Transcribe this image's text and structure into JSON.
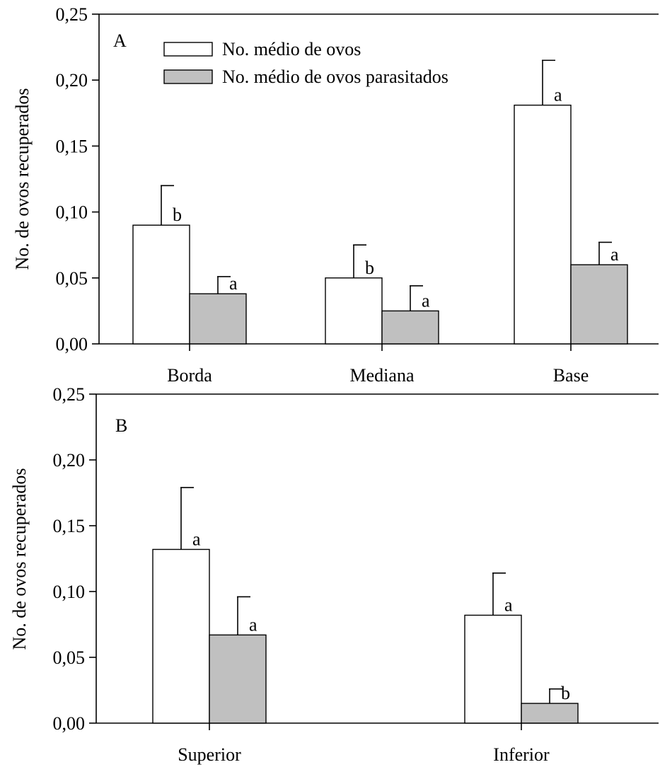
{
  "legend": {
    "entries": [
      {
        "label": "No. médio de ovos",
        "color": "#ffffff"
      },
      {
        "label": "No. médio de ovos parasitados",
        "color": "#c0c0c0"
      }
    ]
  },
  "chart_data": [
    {
      "type": "bar",
      "panel": "A",
      "ylabel": "No. de ovos recuperados",
      "ylim": [
        0,
        0.25
      ],
      "yticks": [
        "0,00",
        "0,05",
        "0,10",
        "0,15",
        "0,20",
        "0,25"
      ],
      "categories": [
        "Borda",
        "Mediana",
        "Base"
      ],
      "series": [
        {
          "name": "No. médio de ovos",
          "color": "#ffffff",
          "values": [
            0.09,
            0.05,
            0.181
          ],
          "errors": [
            0.03,
            0.025,
            0.034
          ],
          "sig_labels": [
            "b",
            "b",
            "a"
          ]
        },
        {
          "name": "No. médio de ovos parasitados",
          "color": "#c0c0c0",
          "values": [
            0.038,
            0.025,
            0.06
          ],
          "errors": [
            0.013,
            0.019,
            0.017
          ],
          "sig_labels": [
            "a",
            "a",
            "a"
          ]
        }
      ],
      "legend_position": "top-left",
      "grid": false
    },
    {
      "type": "bar",
      "panel": "B",
      "ylabel": "No. de ovos recuperados",
      "ylim": [
        0,
        0.25
      ],
      "yticks": [
        "0,00",
        "0,05",
        "0,10",
        "0,15",
        "0,20",
        "0,25"
      ],
      "categories": [
        "Superior",
        "Inferior"
      ],
      "series": [
        {
          "name": "No. médio de ovos",
          "color": "#ffffff",
          "values": [
            0.132,
            0.082
          ],
          "errors": [
            0.047,
            0.032
          ],
          "sig_labels": [
            "a",
            "a"
          ]
        },
        {
          "name": "No. médio de ovos parasitados",
          "color": "#c0c0c0",
          "values": [
            0.067,
            0.015
          ],
          "errors": [
            0.029,
            0.011
          ],
          "sig_labels": [
            "a",
            "b"
          ]
        }
      ],
      "grid": false
    }
  ]
}
